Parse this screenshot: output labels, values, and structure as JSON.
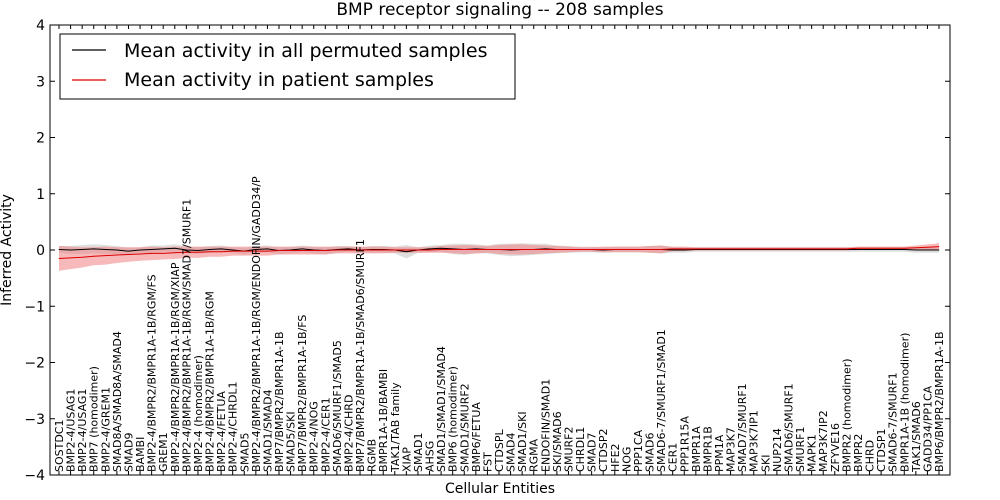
{
  "chart_data": {
    "type": "line",
    "title": "BMP receptor signaling -- 208 samples",
    "xlabel": "Cellular Entities",
    "ylabel": "Inferred Activity",
    "ylim": [
      -4,
      4
    ],
    "yticks": [
      -4,
      -3,
      -2,
      -1,
      0,
      1,
      2,
      3,
      4
    ],
    "grid": false,
    "legend_position": "top-left",
    "colors": {
      "permuted_line": "#000000",
      "patient_line": "#dd0000",
      "patient_band": "#f08080",
      "permuted_band": "#c8c8c8"
    },
    "categories": [
      "SOSTDC1",
      "BMP2-4/USAG1",
      "BMP2-4/USAG1",
      "BMP7 (homodimer)",
      "BMP2-4/GREM1",
      "SMAD8A/SMAD8A/SMAD4",
      "SMAD9",
      "BAMBI",
      "BMP2-4/BMPR2/BMPR1A-1B/RGM/FS",
      "GREM1",
      "BMP2-4/BMPR2/BMPR1A-1B/RGM/XIAP",
      "BMP2-4/BMPR2/BMPR1A-1B/RGM/SMAD7/SMURF1",
      "BMP2-4 (homodimer)",
      "BMP2-4/BMPR2/BMPR1A-1B/RGM",
      "BMP2-4/FETUA",
      "BMP2-4/CHRDL1",
      "SMAD5",
      "BMP2-4/BMPR2/BMPR1A-1B/RGM/ENDOFIN/GADD34/P",
      "SMAD1/SMAD4",
      "BMP7/BMPR2/BMPR1A-1B",
      "SMAD5/SKI",
      "BMP7/BMPR2/BMPR1A-1B/FS",
      "BMP2-4/NOG",
      "BMP2-4/CER1",
      "SMAD6/SMURF1/SMAD5",
      "BMP2-4/CHRD",
      "BMP7/BMPR2/BMPR1A-1B/SMAD6/SMURF1",
      "RGMB",
      "BMPR1A-1B/BAMBI",
      "TAK1/TAB family",
      "XIAP",
      "SMAD1",
      "AHSG",
      "SMAD1/SMAD1/SMAD4",
      "BMP6 (homodimer)",
      "SMAD1/SMURF2",
      "BMP6/FETUA",
      "FST",
      "CTDSPL",
      "SMAD4",
      "SMAD1/SKI",
      "RGMA",
      "ENDOFIN/SMAD1",
      "SKI/SMAD6",
      "SMURF2",
      "CHRDL1",
      "SMAD7",
      "CTDSP2",
      "HFE2",
      "NOG",
      "PPP1CA",
      "SMAD6",
      "SMAD6-7/SMURF1/SMAD1",
      "CER1",
      "PPP1R15A",
      "BMPR1A",
      "BMPR1B",
      "PPM1A",
      "MAP3K7",
      "SMAD7/SMURF1",
      "MAP3K7IP1",
      "SKI",
      "NUP214",
      "SMAD6/SMURF1",
      "SMURF1",
      "MAPK1",
      "MAP3K7IP2",
      "ZFYVE16",
      "BMPR2 (homodimer)",
      "BMPR2",
      "CHRD",
      "CTDSP1",
      "SMAD6-7/SMURF1",
      "BMPR1A-1B (homodimer)",
      "TAK1/SMAD6",
      "GADD34/PP1CA",
      "BMP6/BMPR2/BMPR1A-1B"
    ],
    "series": [
      {
        "name": "Mean activity in all permuted samples",
        "color": "#000000",
        "values": [
          0.01,
          0.0,
          0.01,
          0.02,
          0.01,
          0.0,
          -0.02,
          0.0,
          0.01,
          0.02,
          0.03,
          0.0,
          -0.01,
          0.01,
          0.02,
          0.0,
          -0.02,
          0.01,
          0.02,
          -0.01,
          0.0,
          0.02,
          0.0,
          -0.01,
          0.01,
          0.02,
          0.0,
          0.01,
          0.01,
          0.0,
          -0.03,
          0.0,
          0.02,
          0.03,
          0.02,
          0.01,
          0.02,
          0.01,
          0.01,
          0.0,
          0.01,
          0.01,
          0.02,
          0.01,
          0.01,
          0.01,
          0.01,
          0.0,
          0.01,
          0.01,
          0.01,
          0.01,
          0.01,
          0.0,
          0.0,
          0.01,
          0.01,
          0.01,
          0.01,
          0.01,
          0.01,
          0.01,
          0.01,
          0.01,
          0.01,
          0.01,
          0.01,
          0.01,
          0.01,
          0.01,
          0.01,
          0.01,
          0.01,
          0.01,
          0.0,
          0.0,
          0.0
        ],
        "band": [
          0.06,
          0.07,
          0.08,
          0.08,
          0.08,
          0.07,
          0.06,
          0.05,
          0.07,
          0.06,
          0.07,
          0.06,
          0.06,
          0.06,
          0.06,
          0.05,
          0.06,
          0.06,
          0.06,
          0.06,
          0.06,
          0.06,
          0.06,
          0.06,
          0.06,
          0.05,
          0.05,
          0.06,
          0.06,
          0.06,
          0.12,
          0.05,
          0.06,
          0.06,
          0.09,
          0.1,
          0.08,
          0.07,
          0.1,
          0.11,
          0.11,
          0.1,
          0.09,
          0.07,
          0.06,
          0.05,
          0.05,
          0.05,
          0.05,
          0.05,
          0.05,
          0.06,
          0.07,
          0.05,
          0.05,
          0.04,
          0.04,
          0.04,
          0.04,
          0.04,
          0.04,
          0.04,
          0.04,
          0.04,
          0.04,
          0.04,
          0.04,
          0.04,
          0.04,
          0.04,
          0.04,
          0.04,
          0.04,
          0.04,
          0.05,
          0.05,
          0.05
        ]
      },
      {
        "name": "Mean activity in patient samples",
        "color": "#dd0000",
        "values": [
          -0.15,
          -0.14,
          -0.13,
          -0.11,
          -0.1,
          -0.09,
          -0.08,
          -0.07,
          -0.06,
          -0.06,
          -0.05,
          -0.04,
          -0.04,
          -0.03,
          -0.03,
          -0.02,
          -0.02,
          -0.02,
          -0.02,
          -0.01,
          -0.01,
          -0.01,
          -0.01,
          -0.01,
          0.0,
          0.0,
          0.0,
          0.0,
          0.0,
          0.0,
          0.0,
          0.0,
          0.0,
          0.01,
          0.01,
          0.01,
          0.01,
          0.01,
          0.01,
          0.01,
          0.01,
          0.01,
          0.01,
          0.01,
          0.01,
          0.01,
          0.01,
          0.01,
          0.01,
          0.01,
          0.01,
          0.01,
          0.01,
          0.02,
          0.02,
          0.02,
          0.02,
          0.02,
          0.02,
          0.02,
          0.02,
          0.02,
          0.02,
          0.02,
          0.02,
          0.02,
          0.02,
          0.02,
          0.02,
          0.03,
          0.03,
          0.03,
          0.03,
          0.03,
          0.04,
          0.05,
          0.06
        ],
        "band": [
          0.22,
          0.2,
          0.18,
          0.16,
          0.16,
          0.14,
          0.13,
          0.12,
          0.12,
          0.11,
          0.11,
          0.1,
          0.1,
          0.09,
          0.09,
          0.08,
          0.08,
          0.08,
          0.08,
          0.07,
          0.07,
          0.07,
          0.07,
          0.07,
          0.06,
          0.06,
          0.06,
          0.06,
          0.06,
          0.05,
          0.05,
          0.05,
          0.05,
          0.06,
          0.07,
          0.08,
          0.07,
          0.06,
          0.08,
          0.09,
          0.09,
          0.08,
          0.07,
          0.06,
          0.05,
          0.04,
          0.04,
          0.05,
          0.05,
          0.05,
          0.05,
          0.06,
          0.07,
          0.04,
          0.04,
          0.03,
          0.03,
          0.03,
          0.03,
          0.03,
          0.03,
          0.03,
          0.03,
          0.03,
          0.03,
          0.03,
          0.03,
          0.03,
          0.03,
          0.03,
          0.03,
          0.03,
          0.03,
          0.03,
          0.04,
          0.05,
          0.06
        ]
      }
    ]
  }
}
